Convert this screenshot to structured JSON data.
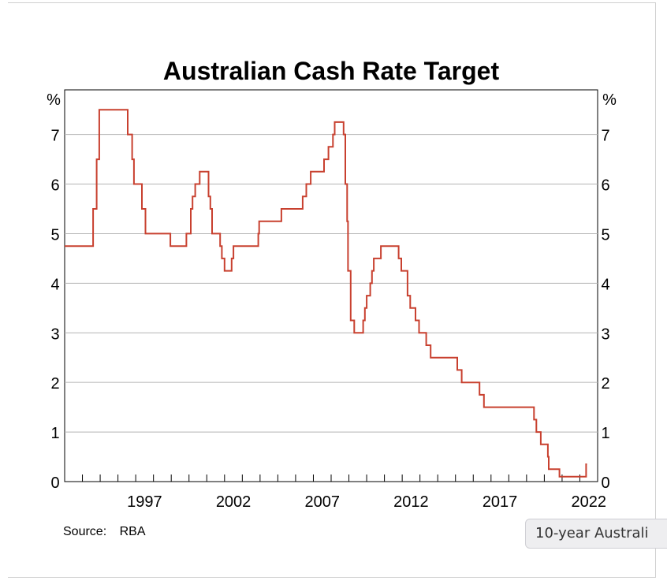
{
  "chart_data": {
    "type": "line",
    "title": "Australian Cash Rate Target",
    "ylabel_left": "%",
    "ylabel_right": "%",
    "ylim": [
      0,
      7.9
    ],
    "yticks": [
      0,
      1,
      2,
      3,
      4,
      5,
      6,
      7
    ],
    "xlim": [
      1993.0,
      2023.0
    ],
    "xticks": [
      1997,
      2002,
      2007,
      2012,
      2017,
      2022
    ],
    "grid": true,
    "line_color": "#c8402f",
    "series": [
      {
        "values": [
          [
            1993.0,
            4.75
          ],
          [
            1994.6,
            4.75
          ],
          [
            1994.6,
            5.5
          ],
          [
            1994.8,
            5.5
          ],
          [
            1994.8,
            6.5
          ],
          [
            1994.95,
            6.5
          ],
          [
            1994.95,
            7.5
          ],
          [
            1996.55,
            7.5
          ],
          [
            1996.55,
            7.0
          ],
          [
            1996.8,
            7.0
          ],
          [
            1996.8,
            6.5
          ],
          [
            1996.9,
            6.5
          ],
          [
            1996.9,
            6.0
          ],
          [
            1997.35,
            6.0
          ],
          [
            1997.35,
            5.5
          ],
          [
            1997.55,
            5.5
          ],
          [
            1997.55,
            5.0
          ],
          [
            1998.95,
            5.0
          ],
          [
            1998.95,
            4.75
          ],
          [
            1999.85,
            4.75
          ],
          [
            1999.85,
            5.0
          ],
          [
            2000.1,
            5.0
          ],
          [
            2000.1,
            5.5
          ],
          [
            2000.2,
            5.5
          ],
          [
            2000.2,
            5.75
          ],
          [
            2000.35,
            5.75
          ],
          [
            2000.35,
            6.0
          ],
          [
            2000.6,
            6.0
          ],
          [
            2000.6,
            6.25
          ],
          [
            2001.1,
            6.25
          ],
          [
            2001.1,
            5.75
          ],
          [
            2001.2,
            5.75
          ],
          [
            2001.2,
            5.5
          ],
          [
            2001.3,
            5.5
          ],
          [
            2001.3,
            5.0
          ],
          [
            2001.75,
            5.0
          ],
          [
            2001.75,
            4.75
          ],
          [
            2001.85,
            4.75
          ],
          [
            2001.85,
            4.5
          ],
          [
            2002.0,
            4.5
          ],
          [
            2002.0,
            4.25
          ],
          [
            2002.4,
            4.25
          ],
          [
            2002.4,
            4.5
          ],
          [
            2002.5,
            4.5
          ],
          [
            2002.5,
            4.75
          ],
          [
            2003.9,
            4.75
          ],
          [
            2003.9,
            5.0
          ],
          [
            2003.95,
            5.0
          ],
          [
            2003.95,
            5.25
          ],
          [
            2005.2,
            5.25
          ],
          [
            2005.2,
            5.5
          ],
          [
            2006.4,
            5.5
          ],
          [
            2006.4,
            5.75
          ],
          [
            2006.6,
            5.75
          ],
          [
            2006.6,
            6.0
          ],
          [
            2006.85,
            6.0
          ],
          [
            2006.85,
            6.25
          ],
          [
            2007.6,
            6.25
          ],
          [
            2007.6,
            6.5
          ],
          [
            2007.85,
            6.5
          ],
          [
            2007.85,
            6.75
          ],
          [
            2008.1,
            6.75
          ],
          [
            2008.1,
            7.0
          ],
          [
            2008.2,
            7.0
          ],
          [
            2008.2,
            7.25
          ],
          [
            2008.7,
            7.25
          ],
          [
            2008.7,
            7.0
          ],
          [
            2008.8,
            7.0
          ],
          [
            2008.8,
            6.0
          ],
          [
            2008.9,
            6.0
          ],
          [
            2008.9,
            5.25
          ],
          [
            2008.95,
            5.25
          ],
          [
            2008.95,
            4.25
          ],
          [
            2009.1,
            4.25
          ],
          [
            2009.1,
            3.25
          ],
          [
            2009.3,
            3.25
          ],
          [
            2009.3,
            3.0
          ],
          [
            2009.8,
            3.0
          ],
          [
            2009.8,
            3.25
          ],
          [
            2009.9,
            3.25
          ],
          [
            2009.9,
            3.5
          ],
          [
            2010.0,
            3.5
          ],
          [
            2010.0,
            3.75
          ],
          [
            2010.2,
            3.75
          ],
          [
            2010.2,
            4.0
          ],
          [
            2010.3,
            4.0
          ],
          [
            2010.3,
            4.25
          ],
          [
            2010.4,
            4.25
          ],
          [
            2010.4,
            4.5
          ],
          [
            2010.8,
            4.5
          ],
          [
            2010.8,
            4.75
          ],
          [
            2011.8,
            4.75
          ],
          [
            2011.8,
            4.5
          ],
          [
            2011.95,
            4.5
          ],
          [
            2011.95,
            4.25
          ],
          [
            2012.3,
            4.25
          ],
          [
            2012.3,
            3.75
          ],
          [
            2012.45,
            3.75
          ],
          [
            2012.45,
            3.5
          ],
          [
            2012.75,
            3.5
          ],
          [
            2012.75,
            3.25
          ],
          [
            2012.95,
            3.25
          ],
          [
            2012.95,
            3.0
          ],
          [
            2013.35,
            3.0
          ],
          [
            2013.35,
            2.75
          ],
          [
            2013.6,
            2.75
          ],
          [
            2013.6,
            2.5
          ],
          [
            2015.1,
            2.5
          ],
          [
            2015.1,
            2.25
          ],
          [
            2015.35,
            2.25
          ],
          [
            2015.35,
            2.0
          ],
          [
            2016.35,
            2.0
          ],
          [
            2016.35,
            1.75
          ],
          [
            2016.6,
            1.75
          ],
          [
            2016.6,
            1.5
          ],
          [
            2019.42,
            1.5
          ],
          [
            2019.42,
            1.25
          ],
          [
            2019.55,
            1.25
          ],
          [
            2019.55,
            1.0
          ],
          [
            2019.8,
            1.0
          ],
          [
            2019.8,
            0.75
          ],
          [
            2020.2,
            0.75
          ],
          [
            2020.2,
            0.5
          ],
          [
            2020.25,
            0.5
          ],
          [
            2020.25,
            0.25
          ],
          [
            2020.85,
            0.25
          ],
          [
            2020.85,
            0.1
          ],
          [
            2022.35,
            0.1
          ],
          [
            2022.35,
            0.35
          ],
          [
            2022.4,
            0.35
          ]
        ]
      }
    ]
  },
  "source": {
    "label": "Source:",
    "value": "RBA"
  },
  "tooltip": {
    "text": "10-year Australi"
  }
}
